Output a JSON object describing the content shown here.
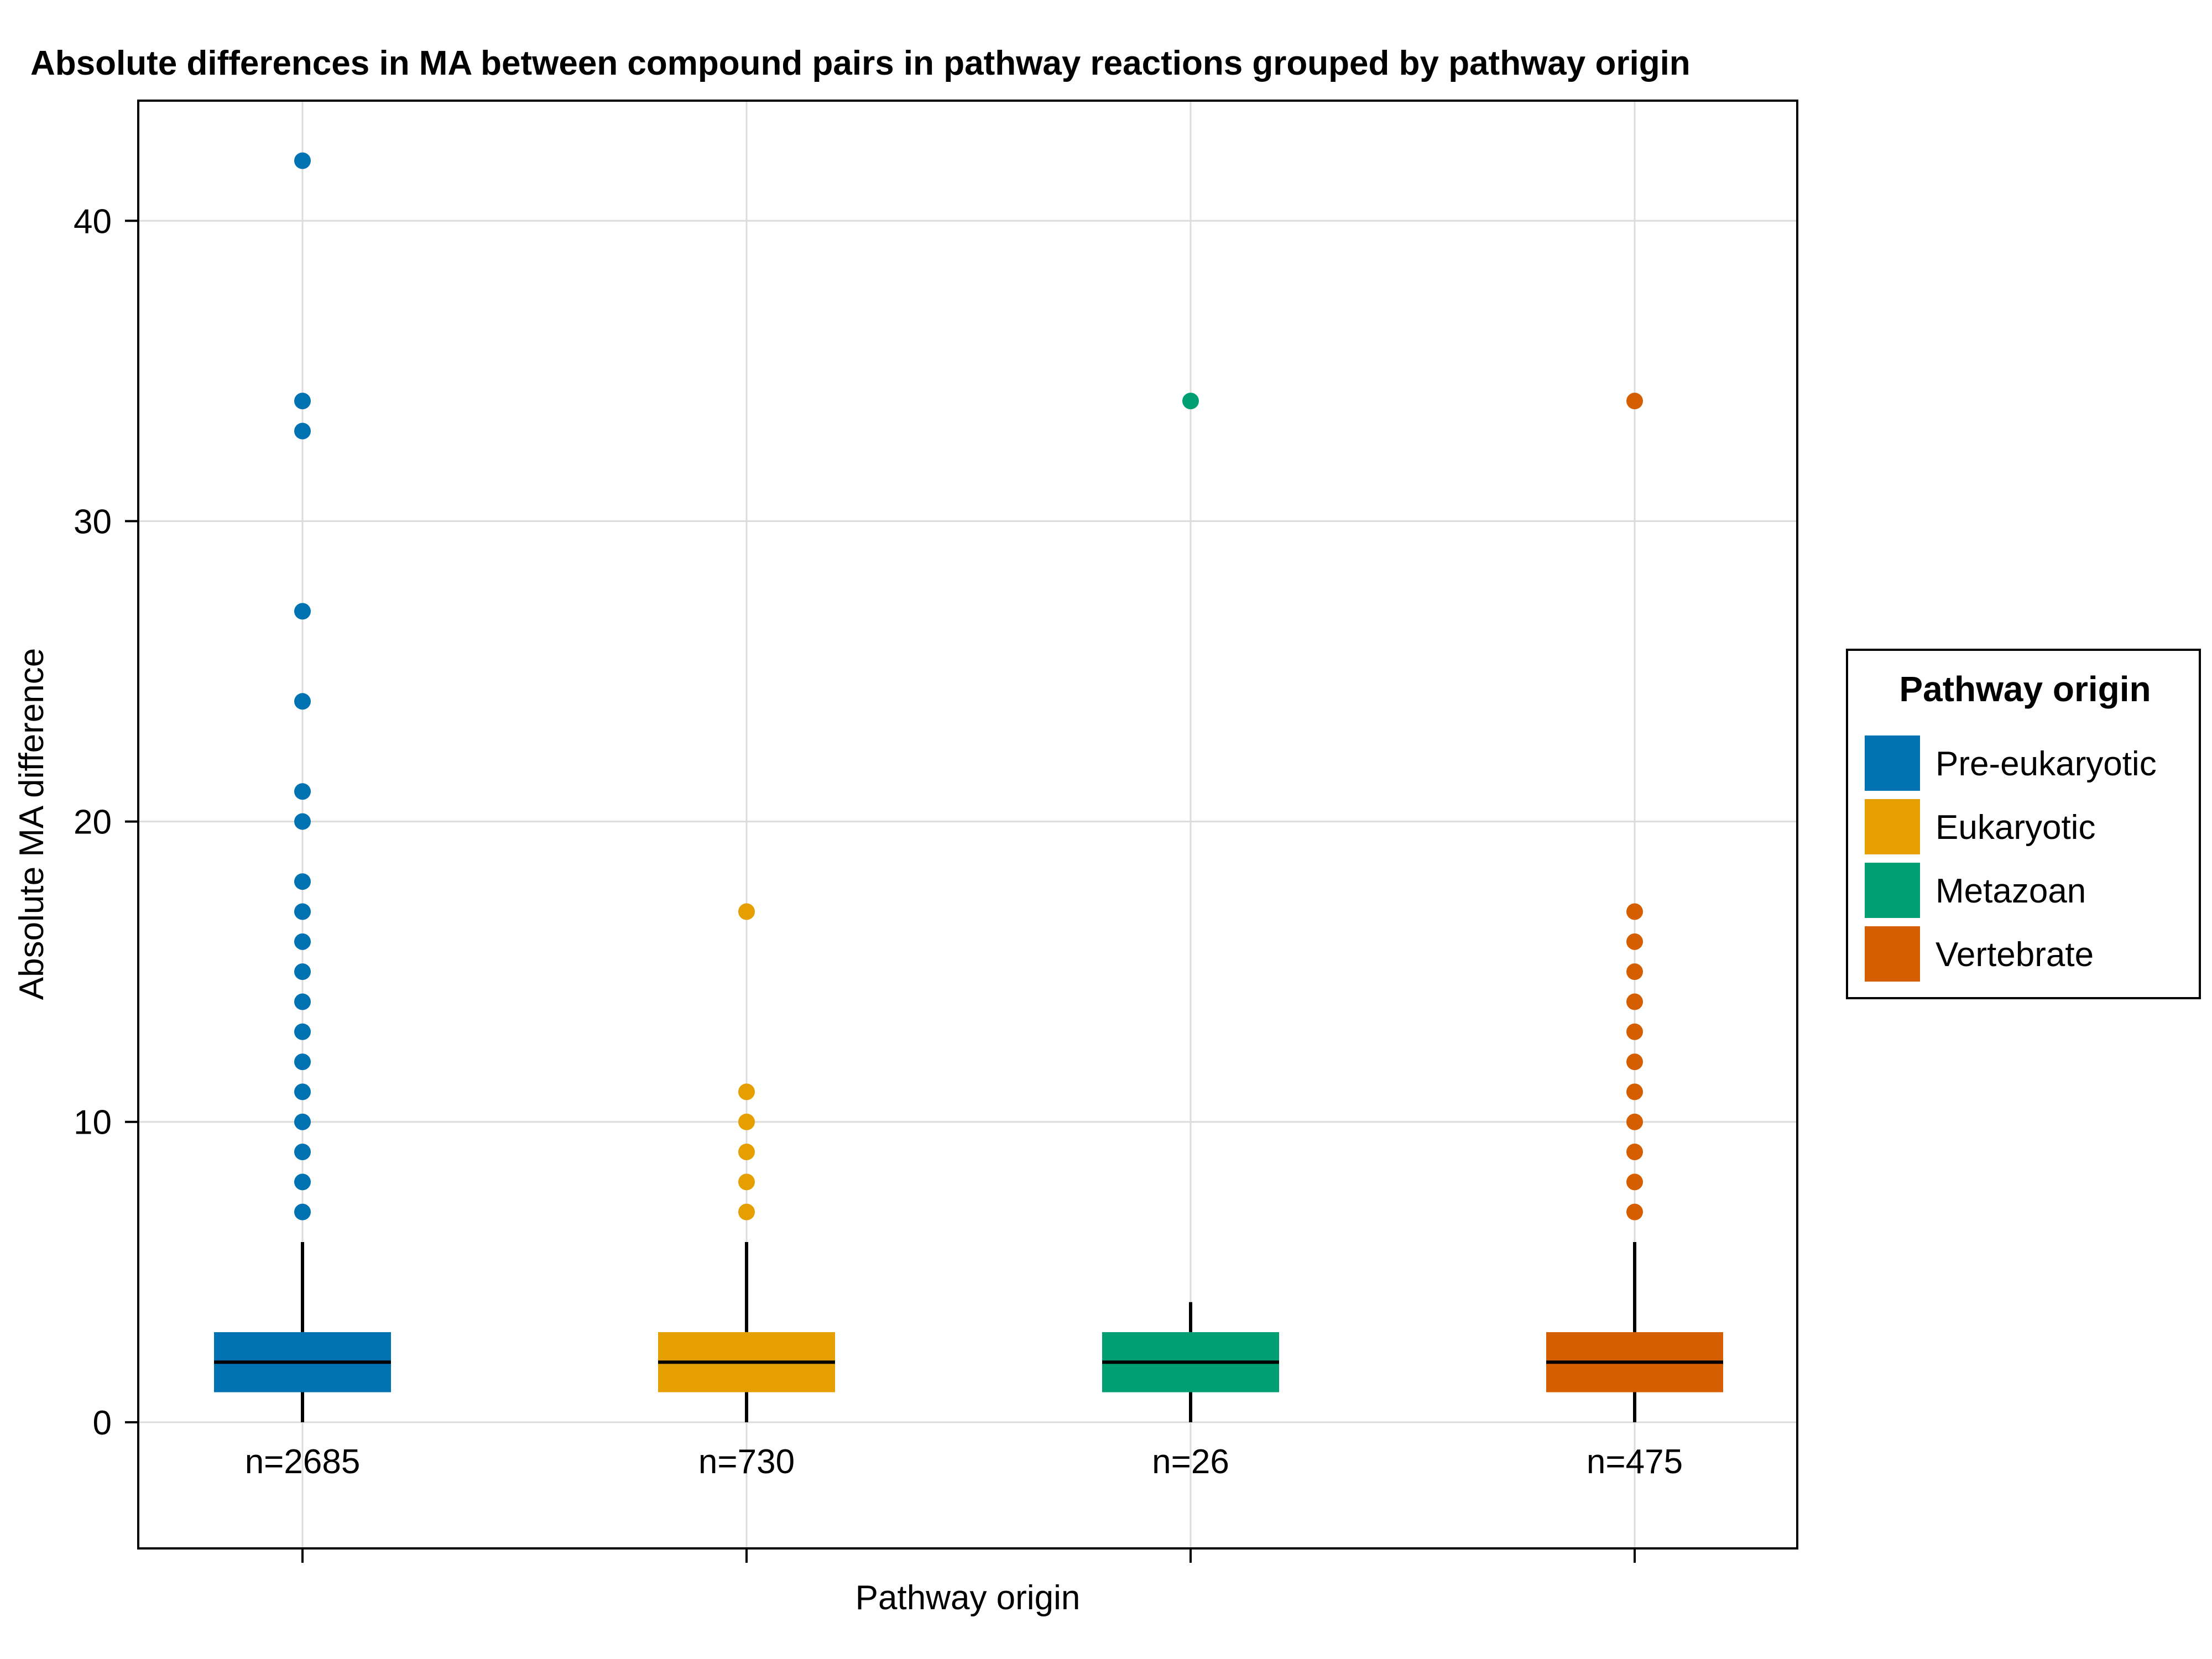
{
  "chart_data": {
    "type": "box",
    "title": "Absolute differences in MA between compound pairs in pathway reactions grouped by pathway origin",
    "xlabel": "Pathway origin",
    "ylabel": "Absolute MA difference",
    "ylim": [
      -4.2,
      44
    ],
    "yticks": [
      0,
      10,
      20,
      30,
      40
    ],
    "grid": true,
    "legend": {
      "title": "Pathway origin",
      "placement": "right"
    },
    "groups": [
      {
        "name": "Pre-eukaryotic",
        "color": "#0072B2",
        "n_label": "n=2685",
        "whisker_low": 0,
        "q1": 1,
        "median": 2,
        "q3": 3,
        "whisker_high": 6,
        "outliers": [
          7,
          8,
          9,
          10,
          11,
          12,
          13,
          14,
          15,
          16,
          17,
          18,
          20,
          21,
          24,
          27,
          33,
          34,
          42
        ]
      },
      {
        "name": "Eukaryotic",
        "color": "#E69F00",
        "n_label": "n=730",
        "whisker_low": 0,
        "q1": 1,
        "median": 2,
        "q3": 3,
        "whisker_high": 6,
        "outliers": [
          7,
          8,
          9,
          10,
          11,
          17
        ]
      },
      {
        "name": "Metazoan",
        "color": "#009E73",
        "n_label": "n=26",
        "whisker_low": 0,
        "q1": 1,
        "median": 2,
        "q3": 3,
        "whisker_high": 4,
        "outliers": [
          34
        ]
      },
      {
        "name": "Vertebrate",
        "color": "#D55E00",
        "n_label": "n=475",
        "whisker_low": 0,
        "q1": 1,
        "median": 2,
        "q3": 3,
        "whisker_high": 6,
        "outliers": [
          7,
          8,
          9,
          10,
          11,
          12,
          13,
          14,
          15,
          16,
          17,
          34
        ]
      }
    ]
  }
}
